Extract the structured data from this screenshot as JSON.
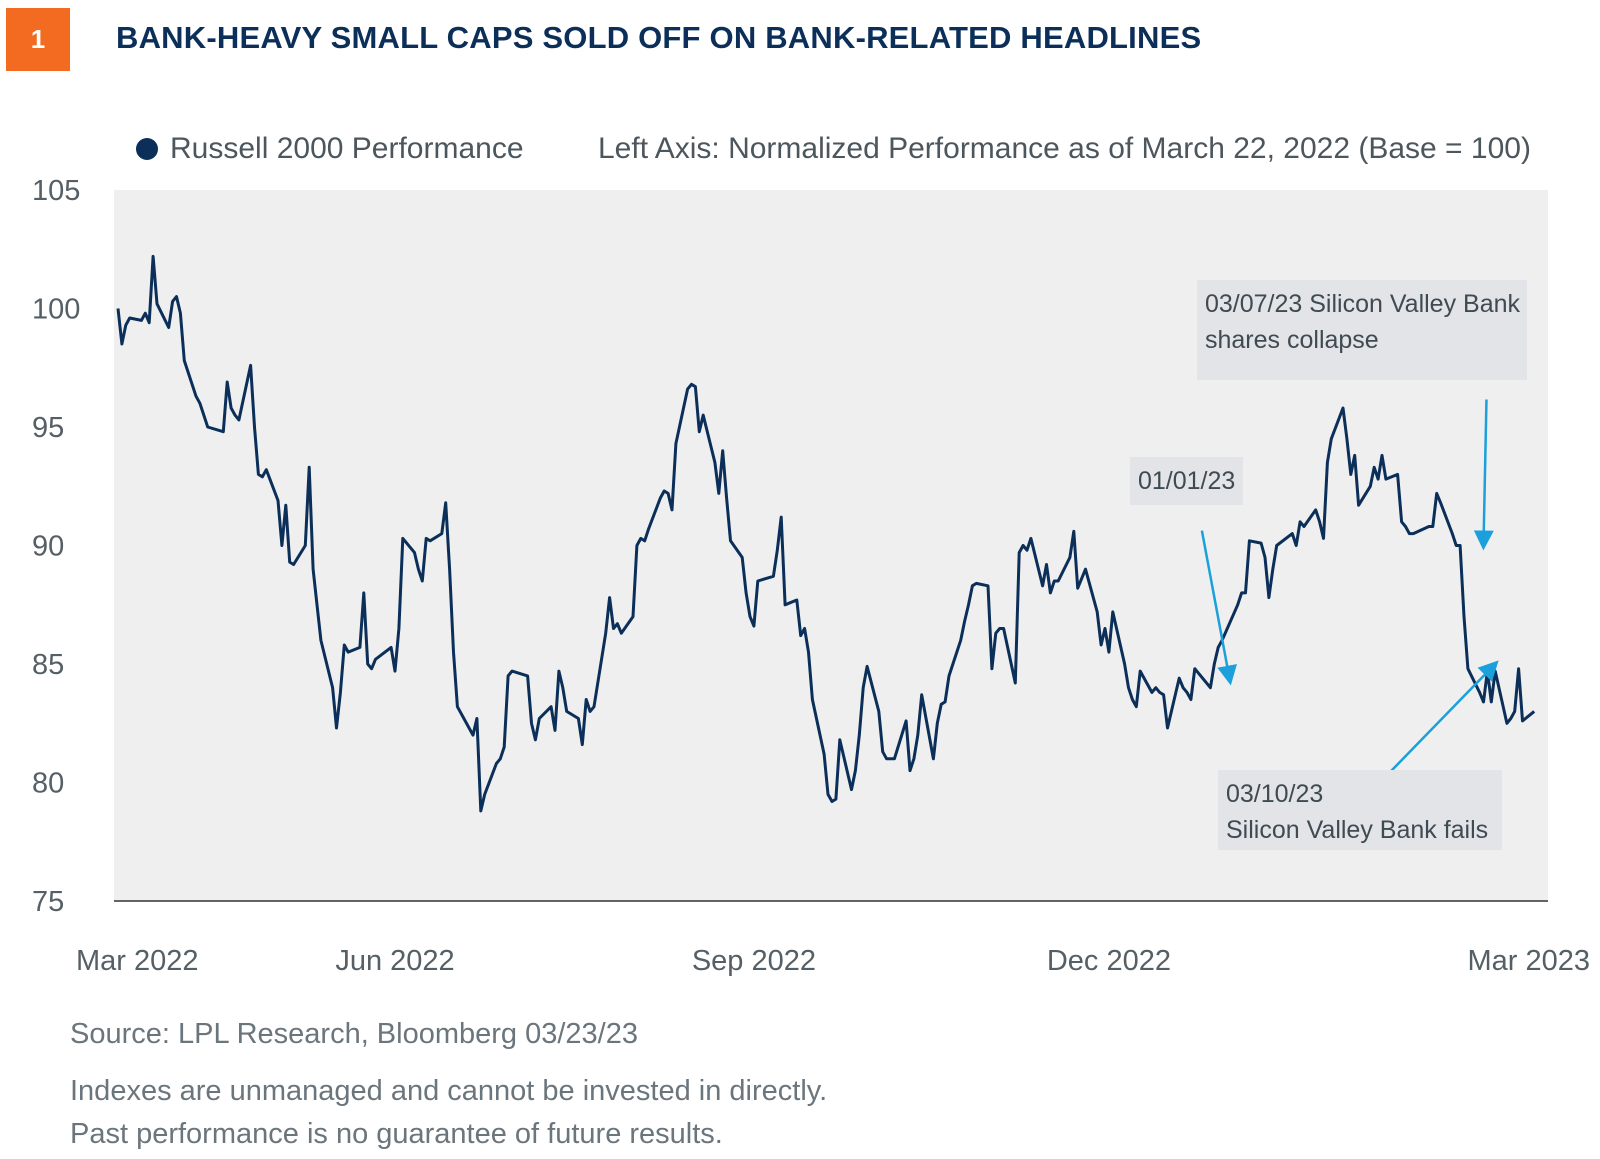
{
  "header": {
    "badge": "1",
    "title": "BANK-HEAVY SMALL CAPS SOLD OFF ON BANK-RELATED HEADLINES"
  },
  "legend": {
    "series_label": "Russell 2000 Performance",
    "axis_note": "Left Axis: Normalized Performance as of March 22, 2022 (Base = 100)"
  },
  "annotations": {
    "jan": {
      "text": "01/01/23"
    },
    "svb_collapse": {
      "line1": "03/07/23 Silicon Valley Bank",
      "line2": "shares collapse"
    },
    "svb_fails": {
      "line1": "03/10/23",
      "line2": "Silicon Valley Bank fails"
    }
  },
  "footer": {
    "source": "Source: LPL Research, Bloomberg  03/23/23",
    "note1": "Indexes are unmanaged and cannot be invested in directly.",
    "note2": "Past performance is no guarantee of future results."
  },
  "colors": {
    "line": "#0b2f59",
    "plot_bg": "#efefef",
    "arrow": "#1ba0dc",
    "badge": "#f26b21",
    "title": "#0b2f59"
  },
  "chart_data": {
    "type": "line",
    "title": "BANK-HEAVY SMALL CAPS SOLD OFF ON BANK-RELATED HEADLINES",
    "xlabel": "",
    "ylabel": "Left Axis: Normalized Performance as of March 22, 2022 (Base = 100)",
    "ylim": [
      75,
      105
    ],
    "yticks": [
      105,
      100,
      95,
      90,
      85,
      80,
      75
    ],
    "xlim": [
      "2022-03-22",
      "2023-03-22"
    ],
    "xticks": [
      {
        "date": "2022-03-22",
        "label": "Mar 2022"
      },
      {
        "date": "2022-06-01",
        "label": "Jun 2022"
      },
      {
        "date": "2022-09-01",
        "label": "Sep 2022"
      },
      {
        "date": "2022-12-01",
        "label": "Dec 2022"
      },
      {
        "date": "2023-03-22",
        "label": "Mar 2023"
      }
    ],
    "grid": false,
    "legend": "top-left",
    "series": [
      {
        "name": "Russell 2000 Performance",
        "points": [
          [
            "2022-03-22",
            100.0
          ],
          [
            "2022-03-23",
            98.5
          ],
          [
            "2022-03-24",
            99.3
          ],
          [
            "2022-03-25",
            99.6
          ],
          [
            "2022-03-28",
            99.5
          ],
          [
            "2022-03-29",
            99.8
          ],
          [
            "2022-03-30",
            99.4
          ],
          [
            "2022-03-31",
            102.2
          ],
          [
            "2022-04-01",
            100.2
          ],
          [
            "2022-04-04",
            99.2
          ],
          [
            "2022-04-05",
            100.3
          ],
          [
            "2022-04-06",
            100.5
          ],
          [
            "2022-04-07",
            99.8
          ],
          [
            "2022-04-08",
            97.8
          ],
          [
            "2022-04-11",
            96.3
          ],
          [
            "2022-04-12",
            96.0
          ],
          [
            "2022-04-13",
            95.5
          ],
          [
            "2022-04-14",
            95.0
          ],
          [
            "2022-04-18",
            94.8
          ],
          [
            "2022-04-19",
            96.9
          ],
          [
            "2022-04-20",
            95.8
          ],
          [
            "2022-04-21",
            95.5
          ],
          [
            "2022-04-22",
            95.3
          ],
          [
            "2022-04-25",
            97.6
          ],
          [
            "2022-04-26",
            95.0
          ],
          [
            "2022-04-27",
            93.0
          ],
          [
            "2022-04-28",
            92.9
          ],
          [
            "2022-04-29",
            93.2
          ],
          [
            "2022-05-02",
            91.9
          ],
          [
            "2022-05-03",
            90.0
          ],
          [
            "2022-05-04",
            91.7
          ],
          [
            "2022-05-05",
            89.3
          ],
          [
            "2022-05-06",
            89.2
          ],
          [
            "2022-05-09",
            90.0
          ],
          [
            "2022-05-10",
            93.3
          ],
          [
            "2022-05-11",
            89.0
          ],
          [
            "2022-05-12",
            87.5
          ],
          [
            "2022-05-13",
            86.0
          ],
          [
            "2022-05-16",
            84.0
          ],
          [
            "2022-05-17",
            82.3
          ],
          [
            "2022-05-18",
            83.8
          ],
          [
            "2022-05-19",
            85.8
          ],
          [
            "2022-05-20",
            85.5
          ],
          [
            "2022-05-23",
            85.7
          ],
          [
            "2022-05-24",
            88.0
          ],
          [
            "2022-05-25",
            85.0
          ],
          [
            "2022-05-26",
            84.8
          ],
          [
            "2022-05-27",
            85.2
          ],
          [
            "2022-05-31",
            85.7
          ],
          [
            "2022-06-01",
            84.7
          ],
          [
            "2022-06-02",
            86.5
          ],
          [
            "2022-06-03",
            90.3
          ],
          [
            "2022-06-06",
            89.7
          ],
          [
            "2022-06-07",
            89.0
          ],
          [
            "2022-06-08",
            88.5
          ],
          [
            "2022-06-09",
            90.3
          ],
          [
            "2022-06-10",
            90.2
          ],
          [
            "2022-06-13",
            90.5
          ],
          [
            "2022-06-14",
            91.8
          ],
          [
            "2022-06-15",
            89.0
          ],
          [
            "2022-06-16",
            85.5
          ],
          [
            "2022-06-17",
            83.2
          ],
          [
            "2022-06-21",
            82.0
          ],
          [
            "2022-06-22",
            82.7
          ],
          [
            "2022-06-23",
            78.8
          ],
          [
            "2022-06-24",
            79.5
          ],
          [
            "2022-06-27",
            80.8
          ],
          [
            "2022-06-28",
            81.0
          ],
          [
            "2022-06-29",
            81.5
          ],
          [
            "2022-06-30",
            84.5
          ],
          [
            "2022-07-01",
            84.7
          ],
          [
            "2022-07-05",
            84.5
          ],
          [
            "2022-07-06",
            82.5
          ],
          [
            "2022-07-07",
            81.8
          ],
          [
            "2022-07-08",
            82.7
          ],
          [
            "2022-07-11",
            83.2
          ],
          [
            "2022-07-12",
            82.2
          ],
          [
            "2022-07-13",
            84.7
          ],
          [
            "2022-07-14",
            84.0
          ],
          [
            "2022-07-15",
            83.0
          ],
          [
            "2022-07-18",
            82.7
          ],
          [
            "2022-07-19",
            81.6
          ],
          [
            "2022-07-20",
            83.5
          ],
          [
            "2022-07-21",
            83.0
          ],
          [
            "2022-07-22",
            83.2
          ],
          [
            "2022-07-25",
            86.3
          ],
          [
            "2022-07-26",
            87.8
          ],
          [
            "2022-07-27",
            86.5
          ],
          [
            "2022-07-28",
            86.7
          ],
          [
            "2022-07-29",
            86.3
          ],
          [
            "2022-08-01",
            87.0
          ],
          [
            "2022-08-02",
            90.0
          ],
          [
            "2022-08-03",
            90.3
          ],
          [
            "2022-08-04",
            90.2
          ],
          [
            "2022-08-05",
            90.7
          ],
          [
            "2022-08-08",
            92.0
          ],
          [
            "2022-08-09",
            92.3
          ],
          [
            "2022-08-10",
            92.2
          ],
          [
            "2022-08-11",
            91.5
          ],
          [
            "2022-08-12",
            94.3
          ],
          [
            "2022-08-15",
            96.6
          ],
          [
            "2022-08-16",
            96.8
          ],
          [
            "2022-08-17",
            96.7
          ],
          [
            "2022-08-18",
            94.8
          ],
          [
            "2022-08-19",
            95.5
          ],
          [
            "2022-08-22",
            93.5
          ],
          [
            "2022-08-23",
            92.2
          ],
          [
            "2022-08-24",
            94.0
          ],
          [
            "2022-08-25",
            92.0
          ],
          [
            "2022-08-26",
            90.2
          ],
          [
            "2022-08-29",
            89.5
          ],
          [
            "2022-08-30",
            88.0
          ],
          [
            "2022-08-31",
            87.0
          ],
          [
            "2022-09-01",
            86.6
          ],
          [
            "2022-09-02",
            88.5
          ],
          [
            "2022-09-06",
            88.7
          ],
          [
            "2022-09-07",
            89.8
          ],
          [
            "2022-09-08",
            91.2
          ],
          [
            "2022-09-09",
            87.5
          ],
          [
            "2022-09-12",
            87.7
          ],
          [
            "2022-09-13",
            86.2
          ],
          [
            "2022-09-14",
            86.5
          ],
          [
            "2022-09-15",
            85.5
          ],
          [
            "2022-09-16",
            83.5
          ],
          [
            "2022-09-19",
            81.2
          ],
          [
            "2022-09-20",
            79.5
          ],
          [
            "2022-09-21",
            79.2
          ],
          [
            "2022-09-22",
            79.3
          ],
          [
            "2022-09-23",
            81.8
          ],
          [
            "2022-09-26",
            79.7
          ],
          [
            "2022-09-27",
            80.5
          ],
          [
            "2022-09-28",
            82.0
          ],
          [
            "2022-09-29",
            84.0
          ],
          [
            "2022-09-30",
            84.9
          ],
          [
            "2022-10-03",
            83.0
          ],
          [
            "2022-10-04",
            81.3
          ],
          [
            "2022-10-05",
            81.0
          ],
          [
            "2022-10-06",
            81.0
          ],
          [
            "2022-10-07",
            81.0
          ],
          [
            "2022-10-10",
            82.6
          ],
          [
            "2022-10-11",
            80.5
          ],
          [
            "2022-10-12",
            81.0
          ],
          [
            "2022-10-13",
            82.0
          ],
          [
            "2022-10-14",
            83.7
          ],
          [
            "2022-10-17",
            81.0
          ],
          [
            "2022-10-18",
            82.5
          ],
          [
            "2022-10-19",
            83.3
          ],
          [
            "2022-10-20",
            83.4
          ],
          [
            "2022-10-21",
            84.5
          ],
          [
            "2022-10-24",
            86.0
          ],
          [
            "2022-10-25",
            86.8
          ],
          [
            "2022-10-26",
            87.5
          ],
          [
            "2022-10-27",
            88.3
          ],
          [
            "2022-10-28",
            88.4
          ],
          [
            "2022-10-31",
            88.3
          ],
          [
            "2022-11-01",
            84.8
          ],
          [
            "2022-11-02",
            86.3
          ],
          [
            "2022-11-03",
            86.5
          ],
          [
            "2022-11-04",
            86.5
          ],
          [
            "2022-11-07",
            84.2
          ],
          [
            "2022-11-08",
            89.7
          ],
          [
            "2022-11-09",
            90.0
          ],
          [
            "2022-11-10",
            89.8
          ],
          [
            "2022-11-11",
            90.3
          ],
          [
            "2022-11-14",
            88.3
          ],
          [
            "2022-11-15",
            89.2
          ],
          [
            "2022-11-16",
            88.0
          ],
          [
            "2022-11-17",
            88.5
          ],
          [
            "2022-11-18",
            88.5
          ],
          [
            "2022-11-21",
            89.5
          ],
          [
            "2022-11-22",
            90.6
          ],
          [
            "2022-11-23",
            88.2
          ],
          [
            "2022-11-25",
            89.0
          ],
          [
            "2022-11-28",
            87.2
          ],
          [
            "2022-11-29",
            85.8
          ],
          [
            "2022-11-30",
            86.5
          ],
          [
            "2022-12-01",
            85.5
          ],
          [
            "2022-12-02",
            87.2
          ],
          [
            "2022-12-05",
            85.0
          ],
          [
            "2022-12-06",
            84.0
          ],
          [
            "2022-12-07",
            83.5
          ],
          [
            "2022-12-08",
            83.2
          ],
          [
            "2022-12-09",
            84.7
          ],
          [
            "2022-12-12",
            83.8
          ],
          [
            "2022-12-13",
            84.0
          ],
          [
            "2022-12-14",
            83.8
          ],
          [
            "2022-12-15",
            83.7
          ],
          [
            "2022-12-16",
            82.3
          ],
          [
            "2022-12-19",
            84.4
          ],
          [
            "2022-12-20",
            84.0
          ],
          [
            "2022-12-21",
            83.8
          ],
          [
            "2022-12-22",
            83.5
          ],
          [
            "2022-12-23",
            84.8
          ],
          [
            "2022-12-27",
            84.0
          ],
          [
            "2022-12-28",
            85.0
          ],
          [
            "2022-12-29",
            85.7
          ],
          [
            "2022-12-30",
            86.0
          ],
          [
            "2023-01-03",
            87.5
          ],
          [
            "2023-01-04",
            88.0
          ],
          [
            "2023-01-05",
            88.0
          ],
          [
            "2023-01-06",
            90.2
          ],
          [
            "2023-01-09",
            90.1
          ],
          [
            "2023-01-10",
            89.5
          ],
          [
            "2023-01-11",
            87.8
          ],
          [
            "2023-01-12",
            89.0
          ],
          [
            "2023-01-13",
            90.0
          ],
          [
            "2023-01-17",
            90.5
          ],
          [
            "2023-01-18",
            90.0
          ],
          [
            "2023-01-19",
            91.0
          ],
          [
            "2023-01-20",
            90.8
          ],
          [
            "2023-01-23",
            91.5
          ],
          [
            "2023-01-24",
            91.0
          ],
          [
            "2023-01-25",
            90.3
          ],
          [
            "2023-01-26",
            93.5
          ],
          [
            "2023-01-27",
            94.5
          ],
          [
            "2023-01-30",
            95.8
          ],
          [
            "2023-01-31",
            94.5
          ],
          [
            "2023-02-01",
            93.0
          ],
          [
            "2023-02-02",
            93.8
          ],
          [
            "2023-02-03",
            91.7
          ],
          [
            "2023-02-06",
            92.5
          ],
          [
            "2023-02-07",
            93.3
          ],
          [
            "2023-02-08",
            92.8
          ],
          [
            "2023-02-09",
            93.8
          ],
          [
            "2023-02-10",
            92.8
          ],
          [
            "2023-02-13",
            93.0
          ],
          [
            "2023-02-14",
            91.0
          ],
          [
            "2023-02-15",
            90.8
          ],
          [
            "2023-02-16",
            90.5
          ],
          [
            "2023-02-17",
            90.5
          ],
          [
            "2023-02-21",
            90.8
          ],
          [
            "2023-02-22",
            90.8
          ],
          [
            "2023-02-23",
            92.2
          ],
          [
            "2023-02-24",
            91.8
          ],
          [
            "2023-02-27",
            90.5
          ],
          [
            "2023-02-28",
            90.0
          ],
          [
            "2023-03-01",
            90.0
          ],
          [
            "2023-03-02",
            87.0
          ],
          [
            "2023-03-03",
            84.8
          ],
          [
            "2023-03-06",
            83.8
          ],
          [
            "2023-03-07",
            83.4
          ],
          [
            "2023-03-08",
            84.7
          ],
          [
            "2023-03-09",
            83.4
          ],
          [
            "2023-03-10",
            84.7
          ],
          [
            "2023-03-13",
            82.5
          ],
          [
            "2023-03-14",
            82.7
          ],
          [
            "2023-03-15",
            83.0
          ],
          [
            "2023-03-16",
            84.8
          ],
          [
            "2023-03-17",
            82.6
          ],
          [
            "2023-03-20",
            83.0
          ]
        ]
      }
    ],
    "annotations": [
      {
        "date": "2023-01-01",
        "value": 84.3,
        "label": "01/01/23"
      },
      {
        "date": "2023-03-07",
        "value": 90.0,
        "label": "03/07/23 Silicon Valley Bank shares collapse"
      },
      {
        "date": "2023-03-10",
        "value": 85.0,
        "label": "03/10/23 Silicon Valley Bank fails"
      }
    ]
  }
}
